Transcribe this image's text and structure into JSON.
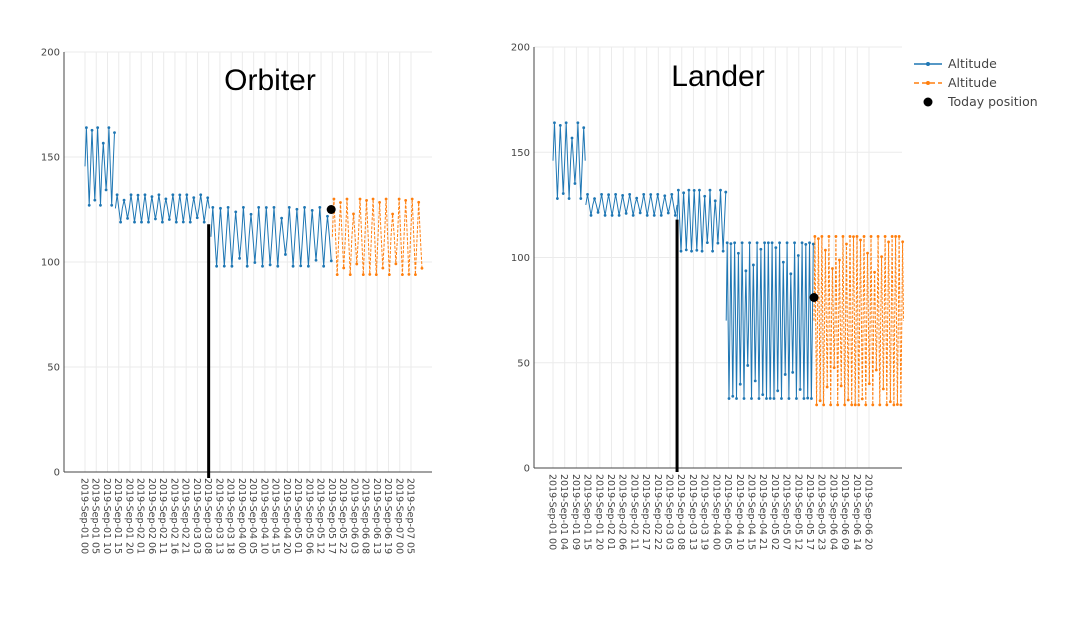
{
  "chart_data": [
    {
      "type": "line",
      "title": "Orbiter",
      "ylim": [
        0,
        200
      ],
      "yticks": [
        0,
        50,
        100,
        150,
        200
      ],
      "x_tick_labels": [
        "2019-Sep-01 00",
        "2019-Sep-01 05",
        "2019-Sep-01 10",
        "2019-Sep-01 15",
        "2019-Sep-01 20",
        "2019-Sep-02 01",
        "2019-Sep-02 06",
        "2019-Sep-02 11",
        "2019-Sep-02 16",
        "2019-Sep-02 21",
        "2019-Sep-03 03",
        "2019-Sep-03 08",
        "2019-Sep-03 13",
        "2019-Sep-03 18",
        "2019-Sep-04 00",
        "2019-Sep-04 05",
        "2019-Sep-04 10",
        "2019-Sep-04 15",
        "2019-Sep-04 20",
        "2019-Sep-05 01",
        "2019-Sep-05 06",
        "2019-Sep-05 12",
        "2019-Sep-05 17",
        "2019-Sep-05 22",
        "2019-Sep-06 03",
        "2019-Sep-06 08",
        "2019-Sep-06 13",
        "2019-Sep-06 19",
        "2019-Sep-07 00",
        "2019-Sep-07 05"
      ],
      "today_marker": {
        "x_index": 11,
        "label_hidden": true
      },
      "today_position": {
        "x_index": 21.9,
        "y": 125
      },
      "series": [
        {
          "name": "Altitude",
          "color": "#1f77b4",
          "segments": [
            {
              "x_start": 0,
              "x_end": 2.7,
              "y_min": 127,
              "y_max": 164,
              "period": 0.5
            },
            {
              "x_start": 2.7,
              "x_end": 11.2,
              "y_min": 119,
              "y_max": 132,
              "period": 0.62
            },
            {
              "x_start": 11.2,
              "x_end": 22,
              "y_min": 98,
              "y_max": 126,
              "period": 0.68
            }
          ]
        },
        {
          "name": "Altitude",
          "color": "#ff7f0e",
          "segments": [
            {
              "x_start": 22,
              "x_end": 30,
              "y_min": 94,
              "y_max": 130,
              "period": 0.58
            }
          ]
        }
      ]
    },
    {
      "type": "line",
      "title": "Lander",
      "ylim": [
        0,
        200
      ],
      "yticks": [
        0,
        50,
        100,
        150,
        200
      ],
      "x_tick_labels": [
        "2019-Sep-01 00",
        "2019-Sep-01 04",
        "2019-Sep-01 09",
        "2019-Sep-01 15",
        "2019-Sep-01 20",
        "2019-Sep-02 01",
        "2019-Sep-02 06",
        "2019-Sep-02 11",
        "2019-Sep-02 17",
        "2019-Sep-02 22",
        "2019-Sep-03 03",
        "2019-Sep-03 08",
        "2019-Sep-03 13",
        "2019-Sep-03 19",
        "2019-Sep-04 00",
        "2019-Sep-04 05",
        "2019-Sep-04 10",
        "2019-Sep-04 15",
        "2019-Sep-04 21",
        "2019-Sep-05 02",
        "2019-Sep-05 07",
        "2019-Sep-05 12",
        "2019-Sep-05 17",
        "2019-Sep-05 23",
        "2019-Sep-06 04",
        "2019-Sep-06 09",
        "2019-Sep-06 14",
        "2019-Sep-06 20"
      ],
      "today_marker": {
        "x_index": 10.6
      },
      "today_position": {
        "x_index": 22.3,
        "y": 81
      },
      "series": [
        {
          "name": "Altitude",
          "color": "#1f77b4",
          "segments": [
            {
              "x_start": 0,
              "x_end": 2.8,
              "y_min": 128,
              "y_max": 164,
              "period": 0.5
            },
            {
              "x_start": 2.8,
              "x_end": 10.6,
              "y_min": 120,
              "y_max": 130,
              "period": 0.6
            },
            {
              "x_start": 10.6,
              "x_end": 14.8,
              "y_min": 103,
              "y_max": 132,
              "period": 0.45
            },
            {
              "x_start": 14.8,
              "x_end": 22.3,
              "y_min": 33,
              "y_max": 107,
              "period": 0.32
            }
          ]
        },
        {
          "name": "Altitude",
          "color": "#ff7f0e",
          "segments": [
            {
              "x_start": 22.3,
              "x_end": 30,
              "y_min": 30,
              "y_max": 110,
              "period": 0.3
            }
          ]
        }
      ]
    }
  ],
  "legend": {
    "items": [
      {
        "label": "Altitude",
        "color": "#1f77b4",
        "symbol": "line-dot"
      },
      {
        "label": "Altitude",
        "color": "#ff7f0e",
        "symbol": "line-dash-dot"
      },
      {
        "label": "Today position",
        "color": "#000000",
        "symbol": "circle"
      }
    ]
  }
}
